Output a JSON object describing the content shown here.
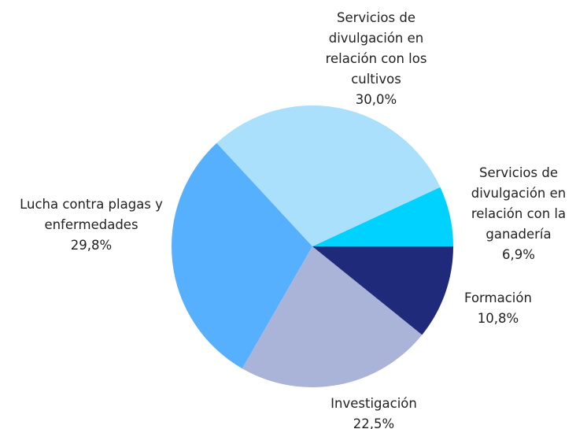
{
  "chart_data": {
    "type": "pie",
    "categories": [
      "Servicios de divulgación en relación con la ganadería",
      "Servicios de divulgación en relación con los cultivos",
      "Lucha contra plagas y enfermedades",
      "Investigación",
      "Formación"
    ],
    "values": [
      6.9,
      30.0,
      29.8,
      22.5,
      10.8
    ],
    "value_labels": [
      "6,9%",
      "30,0%",
      "29,8%",
      "22,5%",
      "10,8%"
    ],
    "colors": [
      "#00d2ff",
      "#aae0fc",
      "#57b0fe",
      "#a9b4d8",
      "#1f2a7a"
    ]
  }
}
